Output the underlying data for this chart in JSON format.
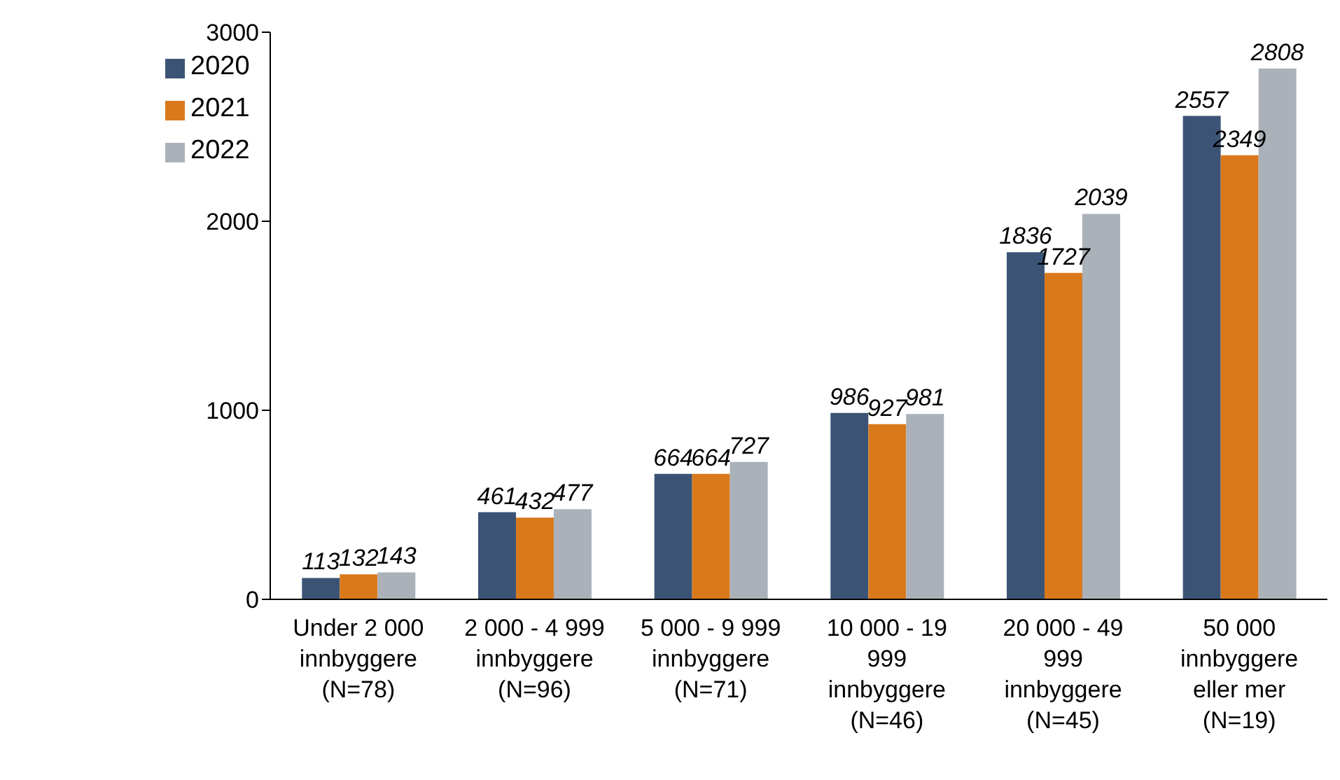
{
  "chart_data": {
    "type": "bar",
    "categories": [
      "Under 2 000 innbyggere (N=78)",
      "2 000 - 4 999 innbyggere (N=96)",
      "5 000 - 9 999 innbyggere (N=71)",
      "10 000 - 19 999 innbyggere (N=46)",
      "20 000 - 49 999 innbyggere (N=45)",
      "50 000 innbyggere eller mer (N=19)"
    ],
    "series": [
      {
        "name": "2020",
        "color": "#3b5476",
        "values": [
          113,
          461,
          664,
          986,
          1836,
          2557
        ]
      },
      {
        "name": "2021",
        "color": "#d9791c",
        "values": [
          132,
          432,
          664,
          927,
          1727,
          2349
        ]
      },
      {
        "name": "2022",
        "color": "#aab1b9",
        "values": [
          143,
          477,
          727,
          981,
          2039,
          2808
        ]
      }
    ],
    "ylim": [
      0,
      3000
    ],
    "yticks": [
      0,
      1000,
      2000,
      3000
    ],
    "legend": "top left",
    "data_labels": true
  }
}
